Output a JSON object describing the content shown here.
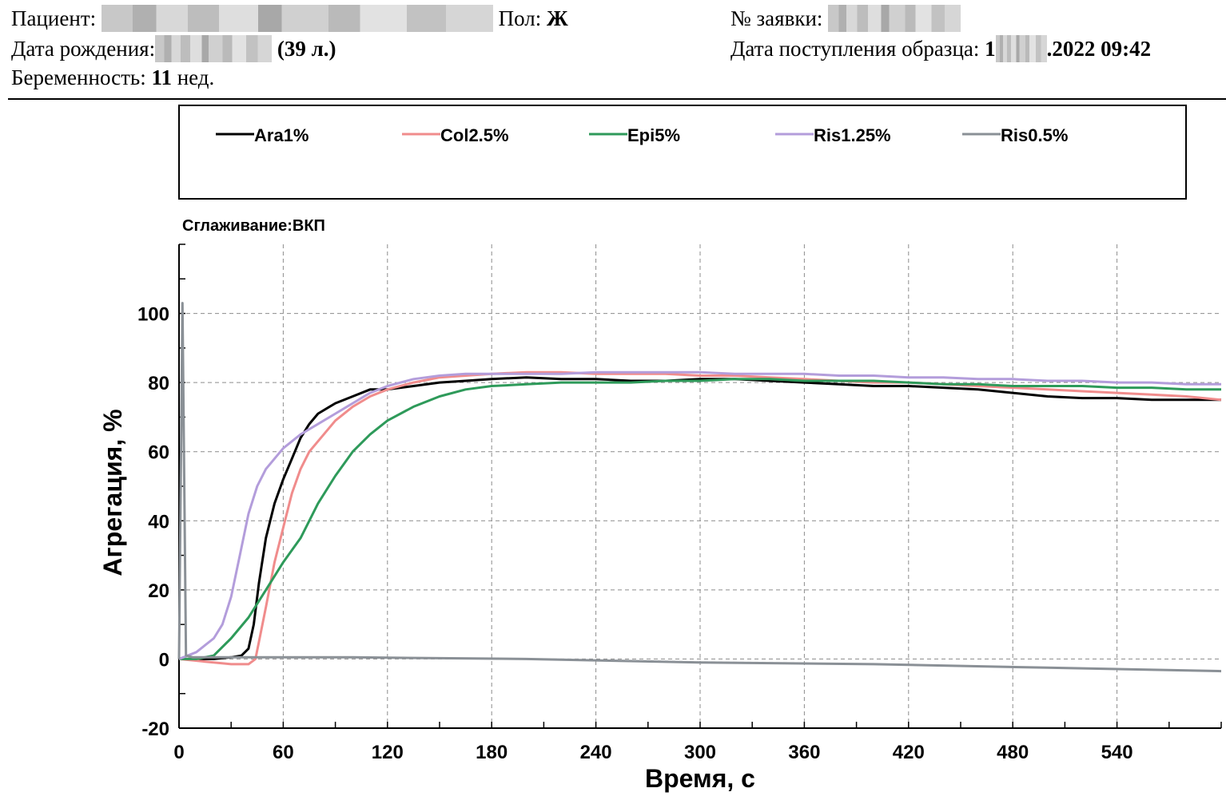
{
  "header": {
    "patient_label": "Пациент:",
    "sex_label": "Пол:",
    "sex_value": "Ж",
    "order_label": "№ заявки:",
    "dob_label": "Дата рождения:",
    "age": "(39 л.)",
    "sample_label": "Дата поступления образца:",
    "sample_prefix": "1",
    "sample_date": ".2022 09:42",
    "pregnancy_label": "Беременность:",
    "pregnancy_weeks": "11",
    "pregnancy_unit": "нед."
  },
  "chart_data": {
    "type": "line",
    "subtitle": "Сглаживание:ВКП",
    "xlabel": "Время, с",
    "ylabel": "Агрегация, %",
    "xlim": [
      0,
      600
    ],
    "ylim": [
      -20,
      120
    ],
    "xticks": [
      0,
      60,
      120,
      180,
      240,
      300,
      360,
      420,
      480,
      540
    ],
    "yticks": [
      -20,
      0,
      20,
      40,
      60,
      80,
      100
    ],
    "grid": true,
    "legend_position": "top",
    "series": [
      {
        "name": "Ara1%",
        "color": "#000000",
        "x": [
          0,
          20,
          30,
          36,
          40,
          43,
          46,
          50,
          55,
          60,
          65,
          70,
          75,
          80,
          90,
          100,
          110,
          120,
          135,
          150,
          165,
          180,
          200,
          220,
          240,
          260,
          280,
          300,
          320,
          340,
          360,
          380,
          400,
          420,
          440,
          460,
          480,
          500,
          520,
          540,
          560,
          580,
          600
        ],
        "y": [
          0,
          0,
          0.5,
          1,
          3,
          10,
          22,
          35,
          45,
          52,
          58,
          64,
          68,
          71,
          74,
          76,
          78,
          78,
          79,
          80,
          80.5,
          81,
          81.5,
          81,
          81,
          80.5,
          80.5,
          81,
          81,
          80.5,
          80,
          79.5,
          79,
          79,
          78.5,
          78,
          77,
          76,
          75.5,
          75.5,
          75,
          75,
          75
        ]
      },
      {
        "name": "Col2.5%",
        "color": "#f08c8c",
        "x": [
          0,
          20,
          30,
          40,
          44,
          46,
          50,
          55,
          60,
          65,
          70,
          75,
          80,
          90,
          100,
          110,
          120,
          135,
          150,
          165,
          180,
          200,
          220,
          240,
          260,
          280,
          300,
          320,
          340,
          360,
          380,
          400,
          420,
          440,
          460,
          480,
          500,
          520,
          540,
          560,
          580,
          600
        ],
        "y": [
          0,
          -1,
          -1.5,
          -1.5,
          0,
          5,
          15,
          28,
          38,
          48,
          55,
          60,
          63,
          69,
          73,
          76,
          78,
          80,
          81.5,
          82,
          82.5,
          83,
          83,
          82.5,
          82.5,
          82.5,
          82,
          82,
          81.5,
          81,
          80.5,
          80,
          80,
          79.5,
          79,
          78.5,
          78,
          77.5,
          77,
          76.5,
          76,
          75
        ]
      },
      {
        "name": "Epi5%",
        "color": "#2e9a5a",
        "x": [
          0,
          10,
          20,
          30,
          40,
          50,
          60,
          70,
          80,
          90,
          100,
          110,
          120,
          135,
          150,
          165,
          180,
          200,
          220,
          240,
          260,
          280,
          300,
          320,
          340,
          360,
          380,
          400,
          420,
          440,
          460,
          480,
          500,
          520,
          540,
          560,
          580,
          600
        ],
        "y": [
          0,
          0,
          1,
          6,
          12,
          20,
          28,
          35,
          45,
          53,
          60,
          65,
          69,
          73,
          76,
          78,
          79,
          79.5,
          80,
          80,
          80,
          80.5,
          80.5,
          81,
          81,
          80.5,
          80.5,
          80.5,
          80,
          79.5,
          79.5,
          79,
          79,
          79,
          78.5,
          78.5,
          78,
          78
        ]
      },
      {
        "name": "Ris1.25%",
        "color": "#b39ddb",
        "x": [
          0,
          10,
          20,
          25,
          30,
          35,
          40,
          45,
          50,
          60,
          70,
          80,
          90,
          100,
          110,
          120,
          135,
          150,
          165,
          180,
          200,
          220,
          240,
          260,
          280,
          300,
          320,
          340,
          360,
          380,
          400,
          420,
          440,
          460,
          480,
          500,
          520,
          540,
          560,
          580,
          600
        ],
        "y": [
          0,
          2,
          6,
          10,
          18,
          30,
          42,
          50,
          55,
          61,
          65,
          68,
          71,
          74,
          77,
          79,
          81,
          82,
          82.5,
          82.5,
          82.5,
          82.5,
          83,
          83,
          83,
          83,
          82.5,
          82.5,
          82.5,
          82,
          82,
          81.5,
          81.5,
          81,
          81,
          80.5,
          80.5,
          80,
          80,
          79.5,
          79.5
        ]
      },
      {
        "name": "Ris0.5%",
        "color": "#8a9096",
        "x": [
          0,
          2,
          4,
          8,
          20,
          100,
          200,
          300,
          400,
          500,
          600
        ],
        "y": [
          0,
          103,
          1,
          0.5,
          0.5,
          0.5,
          0,
          -1,
          -1.5,
          -2.5,
          -3.5
        ]
      }
    ]
  }
}
